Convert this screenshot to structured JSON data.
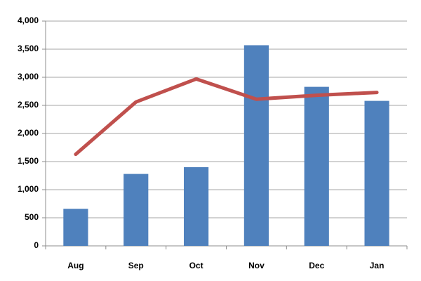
{
  "chart_data": {
    "type": "combo",
    "categories": [
      "Aug",
      "Sep",
      "Oct",
      "Nov",
      "Dec",
      "Jan"
    ],
    "series": [
      {
        "type": "bar",
        "color": "#4f81bd",
        "values": [
          660,
          1280,
          1400,
          3570,
          2830,
          2580
        ]
      },
      {
        "type": "line",
        "color": "#c0504d",
        "values": [
          1630,
          2560,
          2970,
          2610,
          2680,
          2730
        ]
      }
    ],
    "ylim": [
      0,
      4000
    ],
    "yticks": [
      0,
      500,
      {
        "value": 1000,
        "label": "1,000"
      },
      {
        "value": 1500,
        "label": "1,500"
      },
      {
        "value": 2000,
        "label": "2,000"
      },
      {
        "value": 2500,
        "label": "2,500"
      },
      {
        "value": 3000,
        "label": "3,000"
      },
      {
        "value": 3500,
        "label": "3,500"
      },
      {
        "value": 4000,
        "label": "4,000"
      }
    ],
    "grid": true
  }
}
